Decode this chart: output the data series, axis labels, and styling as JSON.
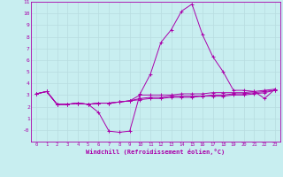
{
  "xlabel": "Windchill (Refroidissement éolien,°C)",
  "background_color": "#c8eef0",
  "grid_color": "#b8dce0",
  "line_color": "#aa00aa",
  "x_values": [
    0,
    1,
    2,
    3,
    4,
    5,
    6,
    7,
    8,
    9,
    10,
    11,
    12,
    13,
    14,
    15,
    16,
    17,
    18,
    19,
    20,
    21,
    22,
    23
  ],
  "series": [
    [
      3.1,
      3.3,
      2.2,
      2.2,
      2.3,
      2.2,
      1.5,
      -0.1,
      -0.2,
      -0.1,
      3.1,
      4.8,
      7.5,
      8.6,
      10.2,
      10.8,
      8.2,
      6.3,
      5.0,
      3.4,
      3.4,
      3.3,
      2.7,
      3.5
    ],
    [
      3.1,
      3.3,
      2.2,
      2.2,
      2.3,
      2.2,
      2.3,
      2.3,
      2.4,
      2.5,
      3.0,
      3.0,
      3.0,
      3.0,
      3.1,
      3.1,
      3.1,
      3.2,
      3.2,
      3.2,
      3.2,
      3.3,
      3.4,
      3.5
    ],
    [
      3.1,
      3.3,
      2.2,
      2.2,
      2.3,
      2.2,
      2.3,
      2.3,
      2.4,
      2.5,
      2.7,
      2.8,
      2.8,
      2.9,
      2.9,
      2.9,
      2.9,
      3.0,
      3.0,
      3.1,
      3.1,
      3.2,
      3.3,
      3.4
    ],
    [
      3.1,
      3.3,
      2.2,
      2.2,
      2.3,
      2.2,
      2.3,
      2.3,
      2.4,
      2.5,
      2.6,
      2.7,
      2.7,
      2.8,
      2.8,
      2.8,
      2.9,
      2.9,
      2.9,
      3.0,
      3.0,
      3.1,
      3.2,
      3.4
    ]
  ],
  "ylim": [
    -1,
    11
  ],
  "xlim": [
    -0.5,
    23.5
  ],
  "yticks": [
    0,
    1,
    2,
    3,
    4,
    5,
    6,
    7,
    8,
    9,
    10,
    11
  ],
  "ytick_labels": [
    "-0",
    "1",
    "2",
    "3",
    "4",
    "5",
    "6",
    "7",
    "8",
    "9",
    "10",
    "11"
  ],
  "xticks": [
    0,
    1,
    2,
    3,
    4,
    5,
    6,
    7,
    8,
    9,
    10,
    11,
    12,
    13,
    14,
    15,
    16,
    17,
    18,
    19,
    20,
    21,
    22,
    23
  ]
}
